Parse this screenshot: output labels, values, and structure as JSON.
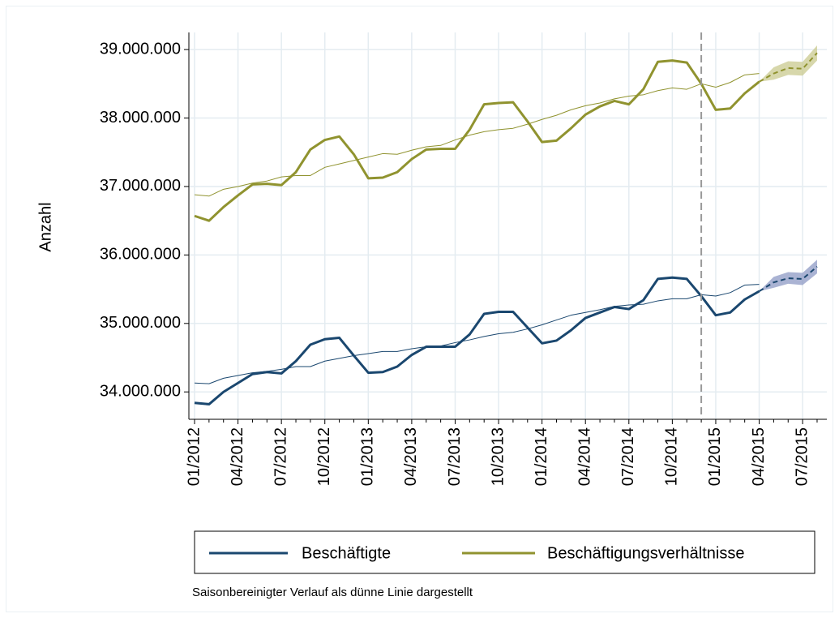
{
  "chart_data": {
    "type": "line",
    "y_label": "Anzahl",
    "note": "Saisonbereinigter Verlauf als dünne Linie dargestellt",
    "categories": [
      "01/2012",
      null,
      null,
      "04/2012",
      null,
      null,
      "07/2012",
      null,
      null,
      "10/2012",
      null,
      null,
      "01/2013",
      null,
      null,
      "04/2013",
      null,
      null,
      "07/2013",
      null,
      null,
      "10/2013",
      null,
      null,
      "01/2014",
      null,
      null,
      "04/2014",
      null,
      null,
      "07/2014",
      null,
      null,
      "10/2014",
      null,
      null,
      "01/2015",
      null,
      null,
      "04/2015",
      null,
      null,
      "07/2015",
      null
    ],
    "ylim": [
      33600000,
      39250000
    ],
    "yticks": [
      {
        "value": 34000000,
        "label": "34.000.000"
      },
      {
        "value": 35000000,
        "label": "35.000.000"
      },
      {
        "value": 36000000,
        "label": "36.000.000"
      },
      {
        "value": 37000000,
        "label": "37.000.000"
      },
      {
        "value": 38000000,
        "label": "38.000.000"
      },
      {
        "value": 39000000,
        "label": "39.000.000"
      }
    ],
    "grid": true,
    "vline_at": 35,
    "series": [
      {
        "name": "Beschäftigte",
        "color": "#1a476f",
        "width": 3,
        "values": [
          33840000,
          33820000,
          34000000,
          34130000,
          34260000,
          34290000,
          34270000,
          34450000,
          34690000,
          34770000,
          34790000,
          34530000,
          34280000,
          34290000,
          34370000,
          34540000,
          34660000,
          34660000,
          34660000,
          34840000,
          35140000,
          35170000,
          35170000,
          34940000,
          34710000,
          34750000,
          34900000,
          35080000,
          35160000,
          35240000,
          35210000,
          35340000,
          35650000,
          35670000,
          35650000,
          35400000,
          35120000,
          35160000,
          35350000,
          35470000,
          null,
          null,
          null,
          null
        ]
      },
      {
        "name": "Beschäftigungsverhältnisse",
        "color": "#90932f",
        "width": 3,
        "values": [
          36570000,
          36500000,
          36700000,
          36870000,
          37030000,
          37040000,
          37020000,
          37210000,
          37540000,
          37680000,
          37730000,
          37470000,
          37120000,
          37130000,
          37210000,
          37400000,
          37540000,
          37550000,
          37550000,
          37830000,
          38200000,
          38220000,
          38230000,
          37950000,
          37650000,
          37670000,
          37850000,
          38050000,
          38170000,
          38250000,
          38200000,
          38420000,
          38820000,
          38840000,
          38810000,
          38500000,
          38120000,
          38140000,
          38360000,
          38530000,
          null,
          null,
          null,
          null
        ]
      },
      {
        "color": "#1a476f",
        "width": 1,
        "values": [
          34130000,
          34120000,
          34200000,
          34240000,
          34280000,
          34300000,
          34330000,
          34370000,
          34370000,
          34450000,
          34490000,
          34530000,
          34560000,
          34590000,
          34590000,
          34630000,
          34660000,
          34670000,
          34720000,
          34760000,
          34810000,
          34850000,
          34870000,
          34920000,
          34980000,
          35050000,
          35120000,
          35160000,
          35200000,
          35250000,
          35270000,
          35280000,
          35330000,
          35360000,
          35360000,
          35420000,
          35400000,
          35450000,
          35560000,
          35570000,
          null,
          null,
          null,
          null
        ]
      },
      {
        "color": "#90932f",
        "width": 1,
        "values": [
          36880000,
          36860000,
          36960000,
          37000000,
          37050000,
          37080000,
          37140000,
          37160000,
          37160000,
          37280000,
          37330000,
          37380000,
          37430000,
          37480000,
          37470000,
          37530000,
          37580000,
          37600000,
          37680000,
          37750000,
          37800000,
          37830000,
          37850000,
          37910000,
          37980000,
          38040000,
          38120000,
          38180000,
          38220000,
          38280000,
          38320000,
          38340000,
          38400000,
          38440000,
          38420000,
          38500000,
          38450000,
          38520000,
          38630000,
          38650000,
          null,
          null,
          null,
          null
        ]
      },
      {
        "color": "#1a476f",
        "width": 2,
        "dash": true,
        "band_color": "#8d9ac4",
        "values": [
          null,
          null,
          null,
          null,
          null,
          null,
          null,
          null,
          null,
          null,
          null,
          null,
          null,
          null,
          null,
          null,
          null,
          null,
          null,
          null,
          null,
          null,
          null,
          null,
          null,
          null,
          null,
          null,
          null,
          null,
          null,
          null,
          null,
          null,
          null,
          null,
          null,
          null,
          null,
          35470000,
          35600000,
          35660000,
          35650000,
          35830000
        ],
        "lower": [
          null,
          null,
          null,
          null,
          null,
          null,
          null,
          null,
          null,
          null,
          null,
          null,
          null,
          null,
          null,
          null,
          null,
          null,
          null,
          null,
          null,
          null,
          null,
          null,
          null,
          null,
          null,
          null,
          null,
          null,
          null,
          null,
          null,
          null,
          null,
          null,
          null,
          null,
          null,
          35470000,
          35520000,
          35580000,
          35560000,
          35730000
        ],
        "upper": [
          null,
          null,
          null,
          null,
          null,
          null,
          null,
          null,
          null,
          null,
          null,
          null,
          null,
          null,
          null,
          null,
          null,
          null,
          null,
          null,
          null,
          null,
          null,
          null,
          null,
          null,
          null,
          null,
          null,
          null,
          null,
          null,
          null,
          null,
          null,
          null,
          null,
          null,
          null,
          35470000,
          35680000,
          35750000,
          35740000,
          35930000
        ]
      },
      {
        "color": "#90932f",
        "width": 2,
        "dash": true,
        "band_color": "#c9c98f",
        "values": [
          null,
          null,
          null,
          null,
          null,
          null,
          null,
          null,
          null,
          null,
          null,
          null,
          null,
          null,
          null,
          null,
          null,
          null,
          null,
          null,
          null,
          null,
          null,
          null,
          null,
          null,
          null,
          null,
          null,
          null,
          null,
          null,
          null,
          null,
          null,
          null,
          null,
          null,
          null,
          38530000,
          38650000,
          38730000,
          38720000,
          38950000
        ],
        "lower": [
          null,
          null,
          null,
          null,
          null,
          null,
          null,
          null,
          null,
          null,
          null,
          null,
          null,
          null,
          null,
          null,
          null,
          null,
          null,
          null,
          null,
          null,
          null,
          null,
          null,
          null,
          null,
          null,
          null,
          null,
          null,
          null,
          null,
          null,
          null,
          null,
          null,
          null,
          null,
          38530000,
          38560000,
          38630000,
          38620000,
          38840000
        ],
        "upper": [
          null,
          null,
          null,
          null,
          null,
          null,
          null,
          null,
          null,
          null,
          null,
          null,
          null,
          null,
          null,
          null,
          null,
          null,
          null,
          null,
          null,
          null,
          null,
          null,
          null,
          null,
          null,
          null,
          null,
          null,
          null,
          null,
          null,
          null,
          null,
          null,
          null,
          null,
          null,
          38530000,
          38740000,
          38830000,
          38820000,
          39060000
        ]
      }
    ]
  }
}
